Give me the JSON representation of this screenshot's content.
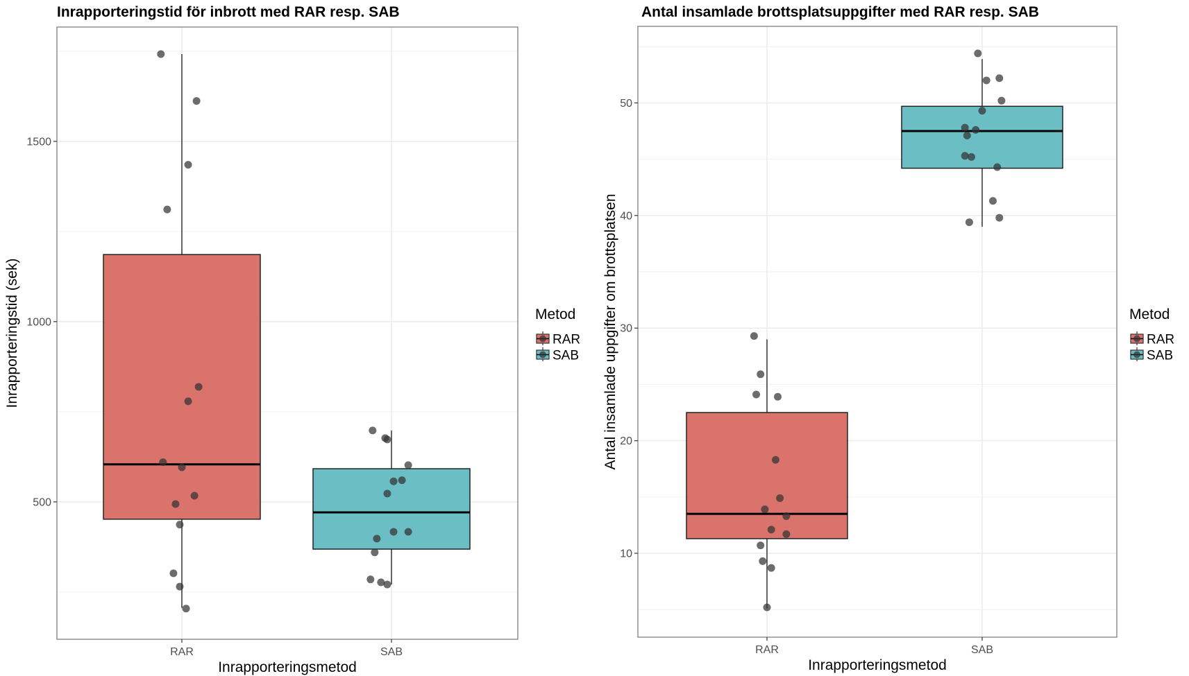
{
  "chart_data": [
    {
      "type": "box",
      "title": "Inrapporteringstid för inbrott med RAR resp. SAB",
      "xlabel": "Inrapporteringsmetod",
      "ylabel": "Inrapporteringstid (sek)",
      "categories": [
        "RAR",
        "SAB"
      ],
      "ylim": [
        119,
        1817
      ],
      "yticks": [
        500,
        1000,
        1500
      ],
      "ytick_labels": [
        "500",
        "1000",
        "1500"
      ],
      "minor_gridlines": [
        250,
        750,
        1250,
        1750
      ],
      "grid": true,
      "legend": {
        "title": "Metod",
        "position": "right",
        "entries": [
          "RAR",
          "SAB"
        ]
      },
      "colors": {
        "RAR": "#DB736D",
        "SAB": "#6BBFC4"
      },
      "boxes": [
        {
          "category": "RAR",
          "whisker_low": 206,
          "q1": 452,
          "median": 604,
          "q3": 1186,
          "whisker_high": 1742
        },
        {
          "category": "SAB",
          "whisker_low": 271,
          "q1": 369,
          "median": 471,
          "q3": 592,
          "whisker_high": 698
        }
      ],
      "points": [
        {
          "category": "RAR",
          "jitter": -0.1,
          "y": 1742
        },
        {
          "category": "RAR",
          "jitter": 0.07,
          "y": 1612
        },
        {
          "category": "RAR",
          "jitter": 0.03,
          "y": 1435
        },
        {
          "category": "RAR",
          "jitter": -0.07,
          "y": 1311
        },
        {
          "category": "RAR",
          "jitter": 0.08,
          "y": 819
        },
        {
          "category": "RAR",
          "jitter": 0.03,
          "y": 779
        },
        {
          "category": "RAR",
          "jitter": -0.09,
          "y": 610
        },
        {
          "category": "RAR",
          "jitter": 0.0,
          "y": 596
        },
        {
          "category": "RAR",
          "jitter": 0.06,
          "y": 517
        },
        {
          "category": "RAR",
          "jitter": -0.03,
          "y": 494
        },
        {
          "category": "RAR",
          "jitter": -0.01,
          "y": 437
        },
        {
          "category": "RAR",
          "jitter": -0.04,
          "y": 302
        },
        {
          "category": "RAR",
          "jitter": -0.01,
          "y": 265
        },
        {
          "category": "RAR",
          "jitter": 0.02,
          "y": 204
        },
        {
          "category": "SAB",
          "jitter": -0.09,
          "y": 698
        },
        {
          "category": "SAB",
          "jitter": -0.03,
          "y": 677
        },
        {
          "category": "SAB",
          "jitter": -0.02,
          "y": 673
        },
        {
          "category": "SAB",
          "jitter": 0.08,
          "y": 602
        },
        {
          "category": "SAB",
          "jitter": 0.05,
          "y": 560
        },
        {
          "category": "SAB",
          "jitter": 0.01,
          "y": 557
        },
        {
          "category": "SAB",
          "jitter": -0.02,
          "y": 523
        },
        {
          "category": "SAB",
          "jitter": 0.01,
          "y": 417
        },
        {
          "category": "SAB",
          "jitter": 0.08,
          "y": 417
        },
        {
          "category": "SAB",
          "jitter": -0.07,
          "y": 398
        },
        {
          "category": "SAB",
          "jitter": -0.08,
          "y": 360
        },
        {
          "category": "SAB",
          "jitter": -0.1,
          "y": 285
        },
        {
          "category": "SAB",
          "jitter": -0.05,
          "y": 277
        },
        {
          "category": "SAB",
          "jitter": -0.02,
          "y": 271
        }
      ]
    },
    {
      "type": "box",
      "title": "Antal insamlade brottsplatsuppgifter med RAR resp. SAB",
      "xlabel": "Inrapporteringsmetod",
      "ylabel": "Antal insamlade uppgifter om brottsplatsen",
      "categories": [
        "RAR",
        "SAB"
      ],
      "ylim": [
        2.55,
        56.8
      ],
      "yticks": [
        10,
        20,
        30,
        40,
        50
      ],
      "ytick_labels": [
        "10",
        "20",
        "30",
        "40",
        "50"
      ],
      "minor_gridlines": [
        5,
        15,
        25,
        35,
        45,
        55
      ],
      "grid": true,
      "legend": {
        "title": "Metod",
        "position": "right",
        "entries": [
          "RAR",
          "SAB"
        ]
      },
      "colors": {
        "RAR": "#DB736D",
        "SAB": "#6BBFC4"
      },
      "boxes": [
        {
          "category": "RAR",
          "whisker_low": 5.1,
          "q1": 11.3,
          "median": 13.5,
          "q3": 22.5,
          "whisker_high": 29.0
        },
        {
          "category": "SAB",
          "whisker_low": 39.0,
          "q1": 44.2,
          "median": 47.5,
          "q3": 49.7,
          "whisker_high": 53.9
        }
      ],
      "points": [
        {
          "category": "RAR",
          "jitter": -0.06,
          "y": 29.3
        },
        {
          "category": "RAR",
          "jitter": -0.03,
          "y": 25.9
        },
        {
          "category": "RAR",
          "jitter": -0.05,
          "y": 24.1
        },
        {
          "category": "RAR",
          "jitter": 0.05,
          "y": 23.9
        },
        {
          "category": "RAR",
          "jitter": 0.04,
          "y": 18.3
        },
        {
          "category": "RAR",
          "jitter": 0.06,
          "y": 14.9
        },
        {
          "category": "RAR",
          "jitter": -0.01,
          "y": 13.9
        },
        {
          "category": "RAR",
          "jitter": 0.09,
          "y": 13.3
        },
        {
          "category": "RAR",
          "jitter": 0.02,
          "y": 12.1
        },
        {
          "category": "RAR",
          "jitter": 0.09,
          "y": 11.7
        },
        {
          "category": "RAR",
          "jitter": -0.03,
          "y": 10.7
        },
        {
          "category": "RAR",
          "jitter": -0.02,
          "y": 9.3
        },
        {
          "category": "RAR",
          "jitter": 0.02,
          "y": 8.7
        },
        {
          "category": "RAR",
          "jitter": 0.0,
          "y": 5.2
        },
        {
          "category": "SAB",
          "jitter": -0.02,
          "y": 54.4
        },
        {
          "category": "SAB",
          "jitter": 0.02,
          "y": 52.0
        },
        {
          "category": "SAB",
          "jitter": 0.08,
          "y": 52.2
        },
        {
          "category": "SAB",
          "jitter": 0.09,
          "y": 50.2
        },
        {
          "category": "SAB",
          "jitter": 0.0,
          "y": 49.3
        },
        {
          "category": "SAB",
          "jitter": -0.08,
          "y": 47.8
        },
        {
          "category": "SAB",
          "jitter": -0.03,
          "y": 47.6
        },
        {
          "category": "SAB",
          "jitter": -0.07,
          "y": 47.1
        },
        {
          "category": "SAB",
          "jitter": -0.08,
          "y": 45.3
        },
        {
          "category": "SAB",
          "jitter": -0.05,
          "y": 45.2
        },
        {
          "category": "SAB",
          "jitter": 0.07,
          "y": 44.3
        },
        {
          "category": "SAB",
          "jitter": 0.05,
          "y": 41.3
        },
        {
          "category": "SAB",
          "jitter": 0.08,
          "y": 39.8
        },
        {
          "category": "SAB",
          "jitter": -0.06,
          "y": 39.4
        }
      ]
    }
  ]
}
